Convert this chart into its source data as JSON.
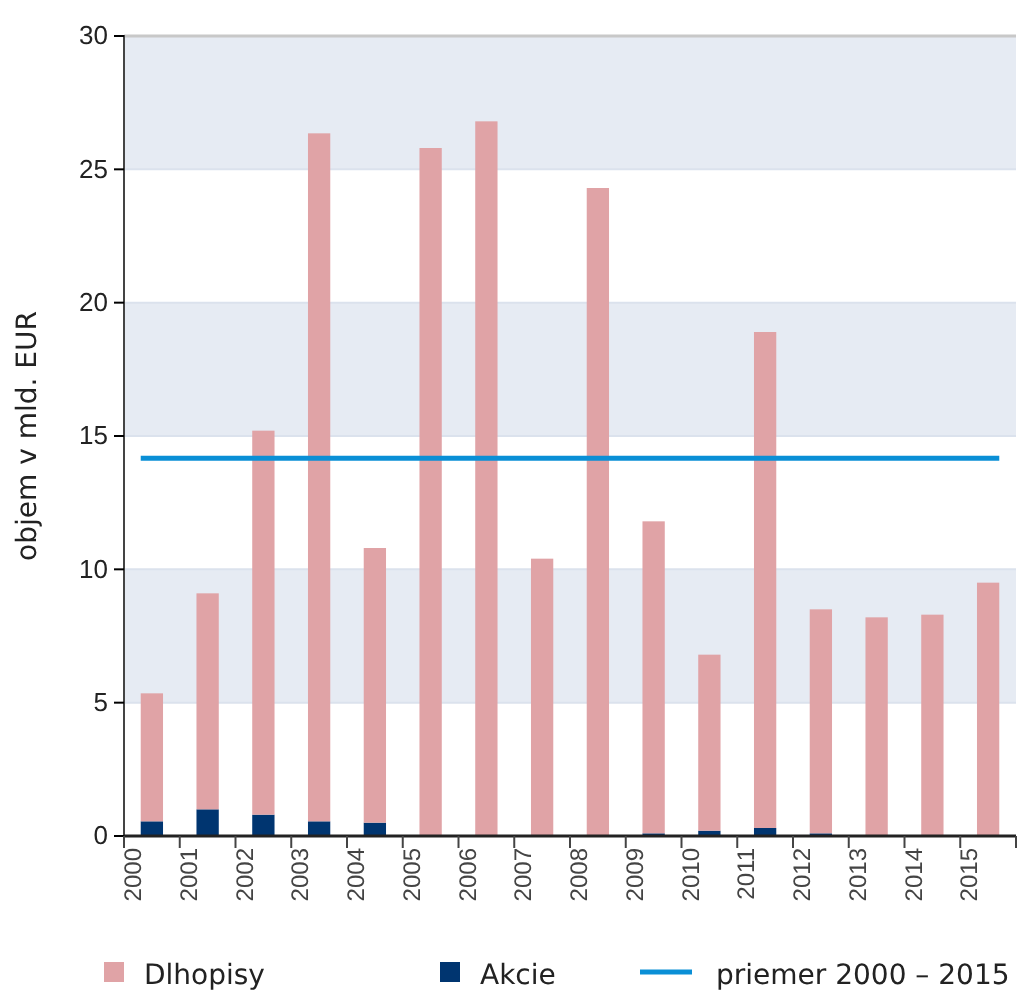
{
  "chart_data": {
    "type": "bar",
    "ylabel": "objem v mld. EUR",
    "stacked": true,
    "categories": [
      "2000",
      "2001",
      "2002",
      "2003",
      "2004",
      "2005",
      "2006",
      "2007",
      "2008",
      "2009",
      "2010",
      "2011",
      "2012",
      "2013",
      "2014",
      "2015"
    ],
    "series": [
      {
        "name": "Akcie",
        "color": "#003570",
        "values": [
          0.55,
          1.0,
          0.8,
          0.55,
          0.5,
          0,
          0,
          0,
          0,
          0.1,
          0.2,
          0.3,
          0.1,
          0,
          0,
          0
        ]
      },
      {
        "name": "Dlhopisy",
        "color": "#e0a3a6",
        "values": [
          4.8,
          8.1,
          14.4,
          25.8,
          10.3,
          25.8,
          26.8,
          10.4,
          24.3,
          11.7,
          6.6,
          18.6,
          8.4,
          8.2,
          8.3,
          9.5
        ]
      }
    ],
    "ref_lines": [
      {
        "axis": "y",
        "value": 14.17,
        "label": "priemer 2000 – 2015",
        "color": "#0a8fd6"
      }
    ],
    "ylim": [
      0,
      30
    ],
    "yticks": [
      0,
      5,
      10,
      15,
      20,
      25,
      30
    ],
    "grid": "y",
    "legend": "bottom"
  }
}
